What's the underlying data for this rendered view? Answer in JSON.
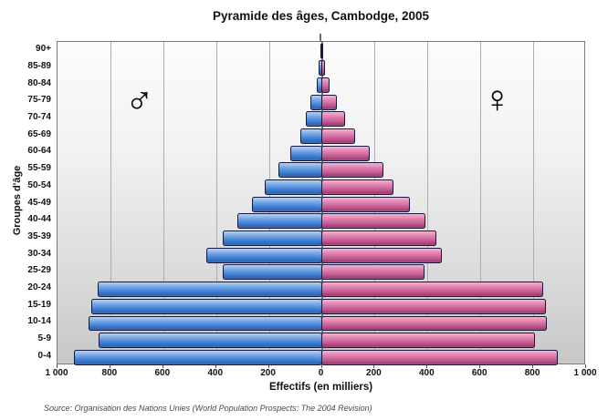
{
  "title": "Pyramide des âges, Cambodge, 2005",
  "axes": {
    "x_label": "Effectifs (en milliers)",
    "y_label": "Groupes d'âge"
  },
  "source": "Source: Organisation des Nations Unies (World Population Prospects: The 2004 Revision)",
  "symbols": {
    "male": "♂",
    "female": "♀",
    "male_color": "#9fc5ef",
    "female_color": "#f8a8cd"
  },
  "chart_data": {
    "type": "bar",
    "subtype": "population_pyramid",
    "orientation": "horizontal-diverging",
    "title": "Pyramide des âges, Cambodge, 2005",
    "xlabel": "Effectifs (en milliers)",
    "ylabel": "Groupes d'âge",
    "unit": "milliers",
    "categories_top_to_bottom": [
      "90+",
      "85-89",
      "80-84",
      "75-79",
      "70-74",
      "65-69",
      "60-64",
      "55-59",
      "50-54",
      "45-49",
      "40-44",
      "35-39",
      "30-34",
      "25-29",
      "20-24",
      "15-19",
      "10-14",
      "5-9",
      "0-4"
    ],
    "series": [
      {
        "name": "male",
        "side": "left",
        "color": "#4e8ad9",
        "values": [
          1,
          8,
          17,
          38,
          58,
          78,
          116,
          161,
          211,
          260,
          316,
          372,
          432,
          372,
          845,
          870,
          878,
          842,
          935
        ]
      },
      {
        "name": "female",
        "side": "right",
        "color": "#d4679f",
        "values": [
          2,
          10,
          25,
          54,
          86,
          124,
          178,
          229,
          268,
          330,
          390,
          430,
          451,
          384,
          833,
          845,
          848,
          803,
          890
        ]
      }
    ],
    "x_axis": {
      "max_each_side": 1000,
      "ticks_left_to_right": [
        "1 000",
        "800",
        "600",
        "400",
        "200",
        "0",
        "200",
        "400",
        "600",
        "800",
        "1 000"
      ],
      "gridline_values_each_side": [
        200,
        400,
        600,
        800
      ]
    },
    "grid": true,
    "legend": "gender symbols inside plot"
  }
}
